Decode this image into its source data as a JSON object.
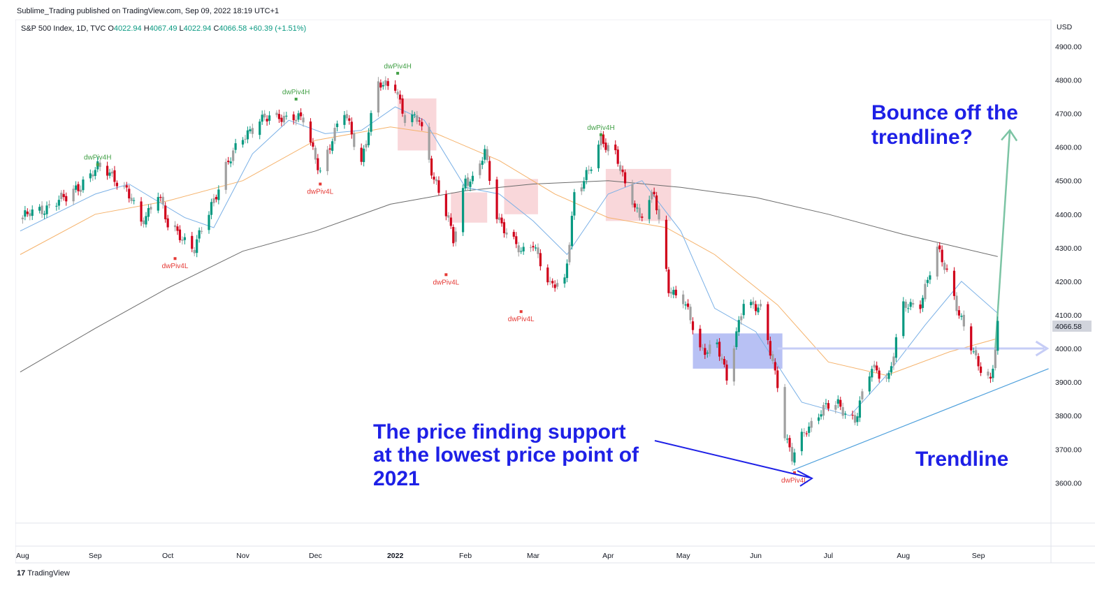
{
  "header": {
    "published": "Sublime_Trading published on TradingView.com, Sep 09, 2022 18:19 UTC+1",
    "symbol": "S&P 500 Index, 1D, TVC",
    "ohlc": {
      "o_label": "O",
      "o": "4022.94",
      "h_label": "H",
      "h": "4067.49",
      "l_label": "L",
      "l": "4022.94",
      "c_label": "C",
      "c": "4066.58",
      "change": "+60.39 (+1.51%)"
    }
  },
  "footer": {
    "brand": "TradingView",
    "logo": "17"
  },
  "colors": {
    "up": "#089981",
    "down": "#d0021b",
    "neutral": "#a0a0a0",
    "sma20": "#7ab0e6",
    "sma50": "#f5b26b",
    "sma200": "#6b6b6b",
    "annotation": "#1e20e6",
    "trendline": "#4ea0dc",
    "bounce_arrow": "#7cc4a4",
    "highlight_red": "#f4b6bc",
    "highlight_blue": "#9aa6f0"
  },
  "chart_data": {
    "type": "candlestick",
    "title": "S&P 500 Index, 1D, TVC",
    "currency": "USD",
    "y_ticks": [
      "4900.00",
      "4800.00",
      "4700.00",
      "4600.00",
      "4500.00",
      "4400.00",
      "4300.00",
      "4200.00",
      "4100.00",
      "4000.00",
      "3900.00",
      "3800.00",
      "3700.00",
      "3600.00"
    ],
    "y_tick_values": [
      4900,
      4800,
      4700,
      4600,
      4500,
      4400,
      4300,
      4200,
      4100,
      4000,
      3900,
      3800,
      3700,
      3600
    ],
    "ylim": [
      3480,
      4980
    ],
    "last_price_label": "4066.58",
    "last_price": 4066.58,
    "x_ticks": [
      {
        "label": "Aug",
        "date": "2021-08-02"
      },
      {
        "label": "Sep",
        "date": "2021-09-01"
      },
      {
        "label": "Oct",
        "date": "2021-10-01"
      },
      {
        "label": "Nov",
        "date": "2021-11-01"
      },
      {
        "label": "Dec",
        "date": "2021-12-01"
      },
      {
        "label": "2022",
        "date": "2022-01-03",
        "bold": true
      },
      {
        "label": "Feb",
        "date": "2022-02-01"
      },
      {
        "label": "Mar",
        "date": "2022-03-01"
      },
      {
        "label": "Apr",
        "date": "2022-04-01"
      },
      {
        "label": "May",
        "date": "2022-05-02"
      },
      {
        "label": "Jun",
        "date": "2022-06-01"
      },
      {
        "label": "Jul",
        "date": "2022-07-01"
      },
      {
        "label": "Aug",
        "date": "2022-08-01"
      },
      {
        "label": "Sep",
        "date": "2022-09-01"
      }
    ],
    "xlim": [
      "2021-07-30",
      "2022-10-01"
    ],
    "series": [
      {
        "name": "close",
        "points": [
          [
            "2021-08-02",
            4390
          ],
          [
            "2021-08-09",
            4410
          ],
          [
            "2021-08-16",
            4440
          ],
          [
            "2021-08-20",
            4445
          ],
          [
            "2021-08-27",
            4500
          ],
          [
            "2021-09-02",
            4535
          ],
          [
            "2021-09-08",
            4520
          ],
          [
            "2021-09-14",
            4470
          ],
          [
            "2021-09-20",
            4370
          ],
          [
            "2021-09-27",
            4470
          ],
          [
            "2021-10-01",
            4360
          ],
          [
            "2021-10-06",
            4340
          ],
          [
            "2021-10-12",
            4300
          ],
          [
            "2021-10-18",
            4400
          ],
          [
            "2021-10-25",
            4550
          ],
          [
            "2021-11-01",
            4620
          ],
          [
            "2021-11-08",
            4690
          ],
          [
            "2021-11-15",
            4680
          ],
          [
            "2021-11-22",
            4700
          ],
          [
            "2021-11-26",
            4680
          ],
          [
            "2021-11-30",
            4580
          ],
          [
            "2021-12-03",
            4530
          ],
          [
            "2021-12-08",
            4630
          ],
          [
            "2021-12-13",
            4700
          ],
          [
            "2021-12-20",
            4560
          ],
          [
            "2021-12-27",
            4780
          ],
          [
            "2022-01-03",
            4790
          ],
          [
            "2022-01-07",
            4680
          ],
          [
            "2022-01-13",
            4680
          ],
          [
            "2022-01-19",
            4510
          ],
          [
            "2022-01-24",
            4400
          ],
          [
            "2022-01-27",
            4320
          ],
          [
            "2022-02-01",
            4510
          ],
          [
            "2022-02-04",
            4500
          ],
          [
            "2022-02-09",
            4580
          ],
          [
            "2022-02-14",
            4400
          ],
          [
            "2022-02-18",
            4350
          ],
          [
            "2022-02-24",
            4280
          ],
          [
            "2022-03-01",
            4320
          ],
          [
            "2022-03-08",
            4180
          ],
          [
            "2022-03-14",
            4200
          ],
          [
            "2022-03-18",
            4460
          ],
          [
            "2022-03-24",
            4520
          ],
          [
            "2022-03-29",
            4630
          ],
          [
            "2022-04-04",
            4580
          ],
          [
            "2022-04-08",
            4480
          ],
          [
            "2022-04-14",
            4400
          ],
          [
            "2022-04-20",
            4460
          ],
          [
            "2022-04-26",
            4180
          ],
          [
            "2022-05-02",
            4150
          ],
          [
            "2022-05-09",
            3990
          ],
          [
            "2022-05-16",
            4020
          ],
          [
            "2022-05-20",
            3900
          ],
          [
            "2022-05-27",
            4150
          ],
          [
            "2022-06-03",
            4110
          ],
          [
            "2022-06-10",
            3900
          ],
          [
            "2022-06-13",
            3750
          ],
          [
            "2022-06-16",
            3670
          ],
          [
            "2022-06-22",
            3760
          ],
          [
            "2022-06-28",
            3820
          ],
          [
            "2022-07-05",
            3830
          ],
          [
            "2022-07-12",
            3790
          ],
          [
            "2022-07-19",
            3940
          ],
          [
            "2022-07-26",
            3920
          ],
          [
            "2022-08-01",
            4120
          ],
          [
            "2022-08-08",
            4140
          ],
          [
            "2022-08-15",
            4290
          ],
          [
            "2022-08-19",
            4230
          ],
          [
            "2022-08-26",
            4060
          ],
          [
            "2022-08-31",
            3960
          ],
          [
            "2022-09-06",
            3910
          ],
          [
            "2022-09-08",
            4006
          ],
          [
            "2022-09-09",
            4066
          ]
        ]
      },
      {
        "name": "SMA 20",
        "points": [
          [
            "2021-08-01",
            4350
          ],
          [
            "2021-09-01",
            4460
          ],
          [
            "2021-09-15",
            4490
          ],
          [
            "2021-10-08",
            4390
          ],
          [
            "2021-10-20",
            4360
          ],
          [
            "2021-11-05",
            4580
          ],
          [
            "2021-11-20",
            4680
          ],
          [
            "2021-12-05",
            4640
          ],
          [
            "2021-12-20",
            4650
          ],
          [
            "2022-01-03",
            4720
          ],
          [
            "2022-01-15",
            4680
          ],
          [
            "2022-02-01",
            4480
          ],
          [
            "2022-02-15",
            4460
          ],
          [
            "2022-03-01",
            4380
          ],
          [
            "2022-03-15",
            4280
          ],
          [
            "2022-04-01",
            4460
          ],
          [
            "2022-04-15",
            4500
          ],
          [
            "2022-05-01",
            4350
          ],
          [
            "2022-05-15",
            4120
          ],
          [
            "2022-06-01",
            4050
          ],
          [
            "2022-06-20",
            3840
          ],
          [
            "2022-07-10",
            3800
          ],
          [
            "2022-07-25",
            3920
          ],
          [
            "2022-08-10",
            4070
          ],
          [
            "2022-08-25",
            4200
          ],
          [
            "2022-09-09",
            4105
          ]
        ]
      },
      {
        "name": "SMA 50",
        "points": [
          [
            "2021-08-01",
            4280
          ],
          [
            "2021-09-01",
            4400
          ],
          [
            "2021-10-01",
            4440
          ],
          [
            "2021-11-01",
            4500
          ],
          [
            "2021-12-01",
            4620
          ],
          [
            "2022-01-01",
            4660
          ],
          [
            "2022-01-20",
            4640
          ],
          [
            "2022-02-15",
            4560
          ],
          [
            "2022-03-10",
            4460
          ],
          [
            "2022-04-01",
            4390
          ],
          [
            "2022-04-25",
            4360
          ],
          [
            "2022-05-15",
            4280
          ],
          [
            "2022-06-10",
            4130
          ],
          [
            "2022-07-01",
            3960
          ],
          [
            "2022-07-25",
            3920
          ],
          [
            "2022-08-20",
            3990
          ],
          [
            "2022-09-09",
            4030
          ]
        ]
      },
      {
        "name": "SMA 200",
        "points": [
          [
            "2021-08-01",
            3930
          ],
          [
            "2021-09-01",
            4060
          ],
          [
            "2021-10-01",
            4180
          ],
          [
            "2021-11-01",
            4290
          ],
          [
            "2021-12-01",
            4350
          ],
          [
            "2022-01-01",
            4430
          ],
          [
            "2022-02-01",
            4470
          ],
          [
            "2022-03-01",
            4490
          ],
          [
            "2022-04-01",
            4500
          ],
          [
            "2022-05-01",
            4480
          ],
          [
            "2022-06-01",
            4450
          ],
          [
            "2022-07-01",
            4400
          ],
          [
            "2022-08-01",
            4340
          ],
          [
            "2022-09-09",
            4274
          ]
        ]
      },
      {
        "name": "trendline",
        "points": [
          [
            "2022-06-16",
            3637
          ],
          [
            "2022-09-30",
            3940
          ]
        ]
      },
      {
        "name": "support_level",
        "points": [
          [
            "2022-06-10",
            4000
          ],
          [
            "2022-09-30",
            4000
          ]
        ]
      },
      {
        "name": "bounce_arrow",
        "points": [
          [
            "2022-09-08",
            4000
          ],
          [
            "2022-09-14",
            4650
          ]
        ]
      }
    ],
    "zones": [
      {
        "from": "2022-01-04",
        "to": "2022-01-20",
        "low": 4590,
        "high": 4745,
        "color": "red"
      },
      {
        "from": "2022-01-26",
        "to": "2022-02-10",
        "low": 4375,
        "high": 4465,
        "color": "red"
      },
      {
        "from": "2022-02-17",
        "to": "2022-03-03",
        "low": 4400,
        "high": 4505,
        "color": "red"
      },
      {
        "from": "2022-03-31",
        "to": "2022-04-27",
        "low": 4380,
        "high": 4535,
        "color": "red"
      },
      {
        "from": "2022-05-06",
        "to": "2022-06-12",
        "low": 3940,
        "high": 4045,
        "color": "blue"
      }
    ],
    "pivots": [
      {
        "label": "dwPiv4H",
        "date": "2021-09-02",
        "value": 4548,
        "kind": "high"
      },
      {
        "label": "dwPiv4L",
        "date": "2021-10-04",
        "value": 4268,
        "kind": "low"
      },
      {
        "label": "dwPiv4H",
        "date": "2021-11-23",
        "value": 4743,
        "kind": "high"
      },
      {
        "label": "dwPiv4L",
        "date": "2021-12-03",
        "value": 4490,
        "kind": "low"
      },
      {
        "label": "dwPiv4H",
        "date": "2022-01-04",
        "value": 4820,
        "kind": "high"
      },
      {
        "label": "dwPiv4L",
        "date": "2022-01-24",
        "value": 4220,
        "kind": "low"
      },
      {
        "label": "dwPiv4L",
        "date": "2022-02-24",
        "value": 4110,
        "kind": "low"
      },
      {
        "label": "dwPiv4H",
        "date": "2022-03-29",
        "value": 4637,
        "kind": "high"
      },
      {
        "label": "dwPiv4L",
        "date": "2022-06-17",
        "value": 3630,
        "kind": "low"
      }
    ],
    "annotations": [
      {
        "lines": [
          "Bounce off the",
          "trendline?"
        ],
        "color": "annotation"
      },
      {
        "lines": [
          "The price finding support",
          "at the lowest price point of",
          "2021"
        ],
        "color": "annotation"
      },
      {
        "lines": [
          "Trendline"
        ],
        "color": "annotation"
      }
    ]
  }
}
